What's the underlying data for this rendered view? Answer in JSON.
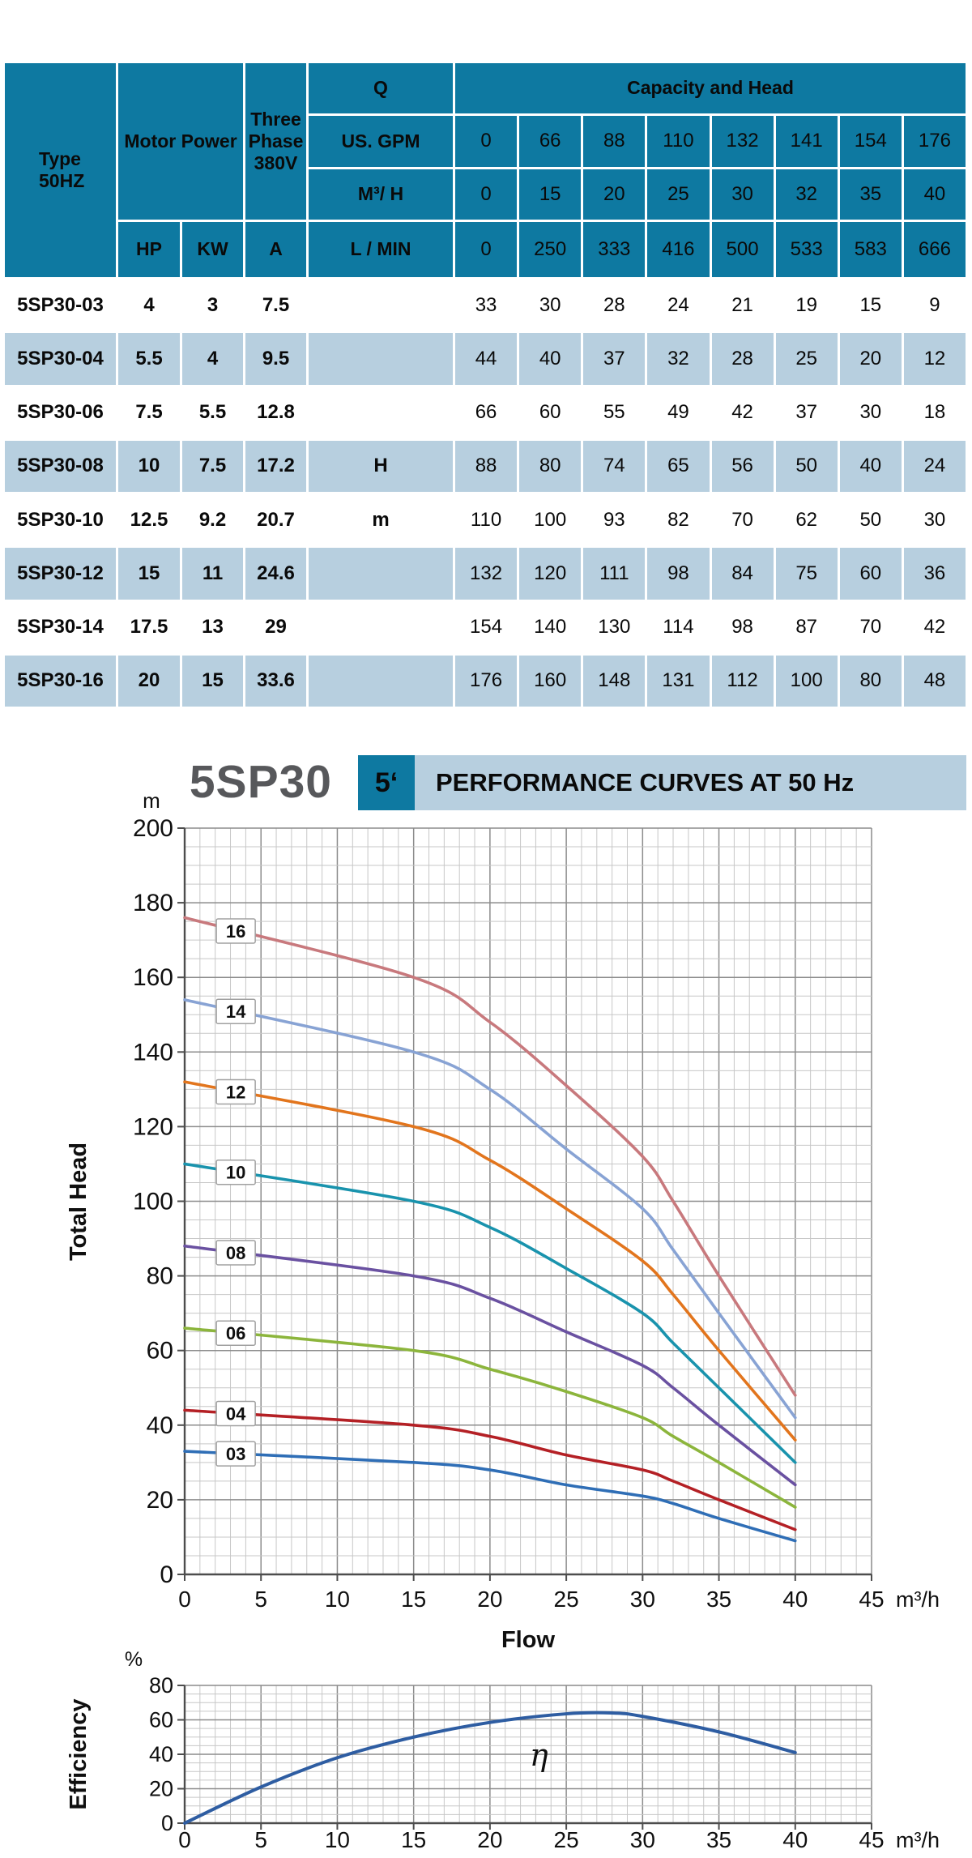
{
  "table": {
    "header": {
      "type_line1": "Type",
      "type_line2": "50HZ",
      "motor_power": "Motor Power",
      "three_phase": "Three Phase 380V",
      "q": "Q",
      "us_gpm": "US. GPM",
      "m3h": "M³/ H",
      "lmin": "L / MIN",
      "hp": "HP",
      "kw": "KW",
      "a": "A",
      "capacity_and_head": "Capacity and Head",
      "gpm_values": [
        "0",
        "66",
        "88",
        "110",
        "132",
        "141",
        "154",
        "176"
      ],
      "m3h_values": [
        "0",
        "15",
        "20",
        "25",
        "30",
        "32",
        "35",
        "40"
      ],
      "lmin_values": [
        "0",
        "250",
        "333",
        "416",
        "500",
        "533",
        "583",
        "666"
      ]
    },
    "rows": [
      {
        "type": "5SP30-03",
        "hp": "4",
        "kw": "3",
        "a": "7.5",
        "q": "",
        "heads": [
          "33",
          "30",
          "28",
          "24",
          "21",
          "19",
          "15",
          "9"
        ]
      },
      {
        "type": "5SP30-04",
        "hp": "5.5",
        "kw": "4",
        "a": "9.5",
        "q": "",
        "heads": [
          "44",
          "40",
          "37",
          "32",
          "28",
          "25",
          "20",
          "12"
        ]
      },
      {
        "type": "5SP30-06",
        "hp": "7.5",
        "kw": "5.5",
        "a": "12.8",
        "q": "",
        "heads": [
          "66",
          "60",
          "55",
          "49",
          "42",
          "37",
          "30",
          "18"
        ]
      },
      {
        "type": "5SP30-08",
        "hp": "10",
        "kw": "7.5",
        "a": "17.2",
        "q": "H",
        "heads": [
          "88",
          "80",
          "74",
          "65",
          "56",
          "50",
          "40",
          "24"
        ]
      },
      {
        "type": "5SP30-10",
        "hp": "12.5",
        "kw": "9.2",
        "a": "20.7",
        "q": "m",
        "heads": [
          "110",
          "100",
          "93",
          "82",
          "70",
          "62",
          "50",
          "30"
        ]
      },
      {
        "type": "5SP30-12",
        "hp": "15",
        "kw": "11",
        "a": "24.6",
        "q": "",
        "heads": [
          "132",
          "120",
          "111",
          "98",
          "84",
          "75",
          "60",
          "36"
        ]
      },
      {
        "type": "5SP30-14",
        "hp": "17.5",
        "kw": "13",
        "a": "29",
        "q": "",
        "heads": [
          "154",
          "140",
          "130",
          "114",
          "98",
          "87",
          "70",
          "42"
        ]
      },
      {
        "type": "5SP30-16",
        "hp": "20",
        "kw": "15",
        "a": "33.6",
        "q": "",
        "heads": [
          "176",
          "160",
          "148",
          "131",
          "112",
          "100",
          "80",
          "48"
        ]
      }
    ]
  },
  "title": {
    "model": "5SP30",
    "size_badge": "5‘",
    "heading": "PERFORMANCE CURVES AT 50 Hz"
  },
  "colors": {
    "header_teal": "#0e79a1",
    "row_alt_blue": "#b7cfdf",
    "model_gray": "#57585b",
    "grid_minor": "#c7c7c7",
    "grid_major": "#8c8c8c",
    "axis": "#4d4d4d"
  },
  "chart_data": [
    {
      "type": "line",
      "title": "PERFORMANCE CURVES AT 50 Hz",
      "xlabel": "Flow",
      "ylabel": "Total Head",
      "x_unit": "m³/h",
      "y_unit": "m",
      "xlim": [
        0,
        45
      ],
      "ylim": [
        0,
        200
      ],
      "x_ticks": [
        0,
        5,
        10,
        15,
        20,
        25,
        30,
        35,
        40,
        45
      ],
      "y_ticks": [
        0,
        20,
        40,
        60,
        80,
        100,
        120,
        140,
        160,
        180,
        200
      ],
      "minor_x_step": 1,
      "minor_y_step": 5,
      "grid": true,
      "legend_position": "on-curve-boxes",
      "x": [
        0,
        15,
        20,
        25,
        30,
        32,
        35,
        40
      ],
      "series": [
        {
          "name": "03",
          "color": "#2f6eb6",
          "values": [
            33,
            30,
            28,
            24,
            21,
            19,
            15,
            9
          ]
        },
        {
          "name": "04",
          "color": "#b42025",
          "values": [
            44,
            40,
            37,
            32,
            28,
            25,
            20,
            12
          ]
        },
        {
          "name": "06",
          "color": "#8cb53c",
          "values": [
            66,
            60,
            55,
            49,
            42,
            37,
            30,
            18
          ]
        },
        {
          "name": "08",
          "color": "#6a51a1",
          "values": [
            88,
            80,
            74,
            65,
            56,
            50,
            40,
            24
          ]
        },
        {
          "name": "10",
          "color": "#1993ad",
          "values": [
            110,
            100,
            93,
            82,
            70,
            62,
            50,
            30
          ]
        },
        {
          "name": "12",
          "color": "#e2751d",
          "values": [
            132,
            120,
            111,
            98,
            84,
            75,
            60,
            36
          ]
        },
        {
          "name": "14",
          "color": "#88a3d4",
          "values": [
            154,
            140,
            130,
            114,
            98,
            87,
            70,
            42
          ]
        },
        {
          "name": "16",
          "color": "#c8797d",
          "values": [
            176,
            160,
            148,
            131,
            112,
            100,
            80,
            48
          ]
        }
      ],
      "series_label_x": 3.35
    },
    {
      "type": "line",
      "title": "",
      "xlabel": "",
      "ylabel": "Efficiency",
      "x_unit": "m³/h",
      "y_unit": "%",
      "xlim": [
        0,
        45
      ],
      "ylim": [
        0,
        80
      ],
      "x_ticks": [
        0,
        5,
        10,
        15,
        20,
        25,
        30,
        35,
        40,
        45
      ],
      "y_ticks": [
        0,
        20,
        40,
        60,
        80
      ],
      "minor_x_step": 1,
      "minor_y_step": 5,
      "grid": true,
      "curve_label": "η",
      "curve_label_pos": [
        22.6,
        39
      ],
      "color": "#2e5da2",
      "points": [
        [
          0,
          0
        ],
        [
          5,
          21
        ],
        [
          10,
          38
        ],
        [
          15,
          50
        ],
        [
          20,
          58.5
        ],
        [
          25,
          63.5
        ],
        [
          28,
          64
        ],
        [
          30,
          62
        ],
        [
          35,
          53
        ],
        [
          40,
          41
        ]
      ]
    }
  ]
}
